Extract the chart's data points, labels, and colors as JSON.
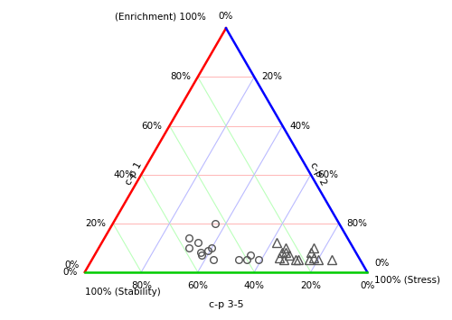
{
  "grid_pcts": [
    0.2,
    0.4,
    0.6,
    0.8
  ],
  "left_axis_labels": [
    "80%",
    "60%",
    "40%",
    "20%",
    "0%"
  ],
  "right_axis_labels": [
    "20%",
    "40%",
    "60%",
    "80%"
  ],
  "bottom_axis_labels": [
    "80%",
    "60%",
    "40%",
    "20%",
    "0%"
  ],
  "top_label": "0%",
  "top_left_label": "(Enrichment) 100%",
  "bottom_left_pct": "0%",
  "bottom_left_name": "100% (Stability)",
  "bottom_right_pct": "0%",
  "bottom_right_name": "100% (Stress)",
  "bottom_center_label": "c-p 3-5",
  "cp1_label": "c-p 1",
  "cp2_label": "c-p 2",
  "colors": {
    "red_line": "#ff0000",
    "blue_line": "#0000ff",
    "green_line": "#00cc00",
    "pink_grid": "#ffbbbb",
    "blue_grid": "#bbbbff",
    "green_grid": "#bbffbb"
  },
  "circle_data": [
    [
      0.14,
      0.56,
      0.3
    ],
    [
      0.12,
      0.54,
      0.34
    ],
    [
      0.09,
      0.52,
      0.39
    ],
    [
      0.1,
      0.5,
      0.4
    ],
    [
      0.1,
      0.58,
      0.32
    ],
    [
      0.08,
      0.55,
      0.37
    ],
    [
      0.07,
      0.55,
      0.38
    ],
    [
      0.05,
      0.52,
      0.43
    ],
    [
      0.2,
      0.44,
      0.36
    ],
    [
      0.05,
      0.43,
      0.52
    ],
    [
      0.05,
      0.4,
      0.55
    ],
    [
      0.07,
      0.38,
      0.55
    ],
    [
      0.05,
      0.36,
      0.59
    ]
  ],
  "triangle_data": [
    [
      0.12,
      0.26,
      0.62
    ],
    [
      0.1,
      0.24,
      0.66
    ],
    [
      0.08,
      0.25,
      0.67
    ],
    [
      0.07,
      0.24,
      0.69
    ],
    [
      0.05,
      0.23,
      0.72
    ],
    [
      0.05,
      0.22,
      0.73
    ],
    [
      0.05,
      0.18,
      0.77
    ],
    [
      0.08,
      0.16,
      0.76
    ],
    [
      0.06,
      0.16,
      0.78
    ],
    [
      0.05,
      0.15,
      0.8
    ],
    [
      0.1,
      0.14,
      0.76
    ],
    [
      0.05,
      0.1,
      0.85
    ],
    [
      0.08,
      0.26,
      0.66
    ],
    [
      0.06,
      0.28,
      0.66
    ],
    [
      0.05,
      0.27,
      0.68
    ]
  ]
}
